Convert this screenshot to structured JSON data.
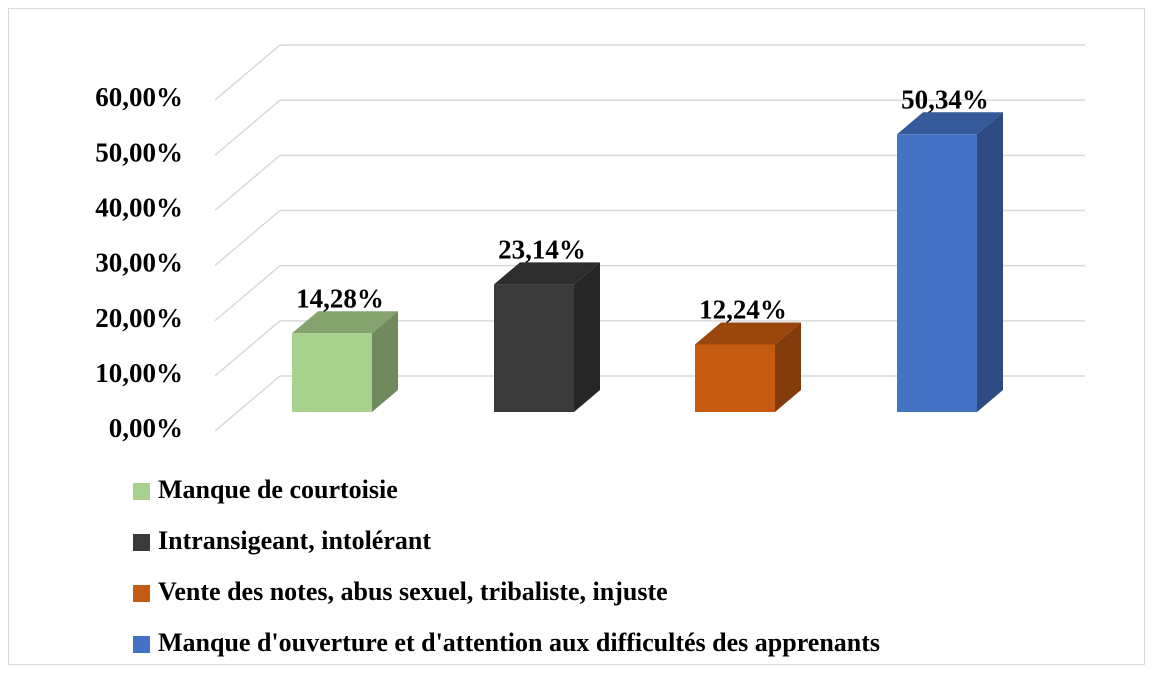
{
  "chart_data": {
    "type": "bar3d",
    "series": [
      {
        "name": "Manque de courtoisie",
        "color": "#a9d18e",
        "values": [
          14.28
        ],
        "value_labels": [
          "14,28%"
        ]
      },
      {
        "name": "Intransigeant, intolérant",
        "color": "#3a3a3a",
        "values": [
          23.14
        ],
        "value_labels": [
          "23,14%"
        ]
      },
      {
        "name": "Vente des notes, abus sexuel, tribaliste, injuste",
        "color": "#c55a11",
        "values": [
          12.24
        ],
        "value_labels": [
          "12,24%"
        ]
      },
      {
        "name": "Manque d'ouverture et d'attention aux difficultés des apprenants",
        "color": "#4472c4",
        "values": [
          50.34
        ],
        "value_labels": [
          "50,34%"
        ]
      }
    ],
    "ylim": [
      0,
      60
    ],
    "yticks": [
      {
        "value": 0,
        "label": "0,00%"
      },
      {
        "value": 10,
        "label": "10,00%"
      },
      {
        "value": 20,
        "label": "20,00%"
      },
      {
        "value": 30,
        "label": "30,00%"
      },
      {
        "value": 40,
        "label": "40,00%"
      },
      {
        "value": 50,
        "label": "50,00%"
      },
      {
        "value": 60,
        "label": "60,00%"
      }
    ],
    "grid": true,
    "legend": "bottom"
  }
}
